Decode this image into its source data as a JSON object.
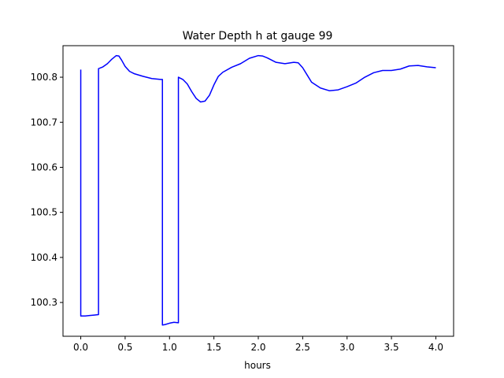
{
  "chart_data": {
    "type": "line",
    "title": "Water Depth h at gauge 99",
    "xlabel": "hours",
    "ylabel": "",
    "xlim": [
      -0.2,
      4.2
    ],
    "ylim": [
      100.225,
      100.87
    ],
    "grid": false,
    "x_ticks": [
      0.0,
      0.5,
      1.0,
      1.5,
      2.0,
      2.5,
      3.0,
      3.5,
      4.0
    ],
    "x_tick_labels": [
      "0.0",
      "0.5",
      "1.0",
      "1.5",
      "2.0",
      "2.5",
      "3.0",
      "3.5",
      "4.0"
    ],
    "y_ticks": [
      100.3,
      100.4,
      100.5,
      100.6,
      100.7,
      100.8
    ],
    "y_tick_labels": [
      "100.3",
      "100.4",
      "100.5",
      "100.6",
      "100.7",
      "100.8"
    ],
    "series": [
      {
        "color": "#0000ff",
        "x": [
          0.0,
          0.0,
          0.05,
          0.1,
          0.15,
          0.2,
          0.2,
          0.25,
          0.3,
          0.35,
          0.4,
          0.43,
          0.46,
          0.5,
          0.55,
          0.6,
          0.7,
          0.8,
          0.9,
          0.92,
          0.92,
          0.95,
          1.0,
          1.05,
          1.1,
          1.1,
          1.15,
          1.2,
          1.25,
          1.3,
          1.35,
          1.4,
          1.45,
          1.5,
          1.55,
          1.6,
          1.7,
          1.8,
          1.9,
          2.0,
          2.05,
          2.1,
          2.2,
          2.3,
          2.4,
          2.45,
          2.5,
          2.55,
          2.6,
          2.7,
          2.8,
          2.9,
          3.0,
          3.1,
          3.2,
          3.3,
          3.4,
          3.5,
          3.6,
          3.7,
          3.8,
          3.9,
          4.0
        ],
        "y": [
          100.817,
          100.27,
          100.27,
          100.271,
          100.272,
          100.273,
          100.819,
          100.823,
          100.83,
          100.84,
          100.848,
          100.847,
          100.838,
          100.824,
          100.813,
          100.808,
          100.802,
          100.797,
          100.795,
          100.795,
          100.25,
          100.251,
          100.254,
          100.256,
          100.255,
          100.8,
          100.795,
          100.785,
          100.768,
          100.753,
          100.745,
          100.747,
          100.76,
          100.783,
          100.802,
          100.811,
          100.822,
          100.83,
          100.842,
          100.848,
          100.847,
          100.843,
          100.833,
          100.83,
          100.833,
          100.832,
          100.821,
          100.805,
          100.789,
          100.776,
          100.77,
          100.772,
          100.779,
          100.787,
          100.8,
          100.81,
          100.815,
          100.815,
          100.818,
          100.825,
          100.826,
          100.823,
          100.821
        ]
      }
    ]
  }
}
